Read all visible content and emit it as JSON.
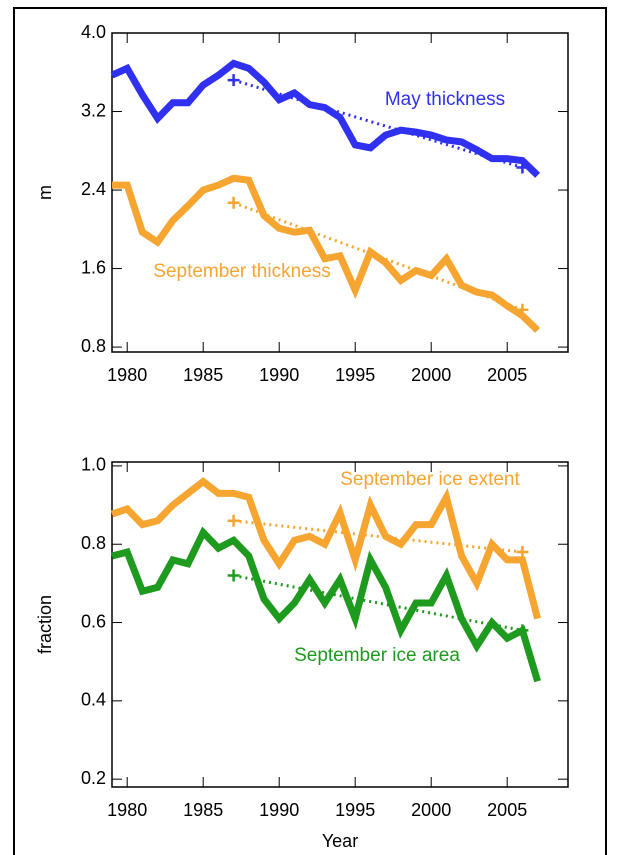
{
  "chart_data": [
    {
      "type": "line",
      "ylabel": "m",
      "x": [
        1979,
        1980,
        1981,
        1982,
        1983,
        1984,
        1985,
        1986,
        1987,
        1988,
        1989,
        1990,
        1991,
        1992,
        1993,
        1994,
        1995,
        1996,
        1997,
        1998,
        1999,
        2000,
        2001,
        2002,
        2003,
        2004,
        2005,
        2006,
        2007
      ],
      "xlim": [
        1979,
        2009
      ],
      "xticks": [
        1980,
        1985,
        1990,
        1995,
        2000,
        2005
      ],
      "ylim": [
        0.75,
        4.0
      ],
      "yticks": [
        0.8,
        1.6,
        2.4,
        3.2,
        {
          "value": 4,
          "label": "4.0"
        }
      ],
      "series": [
        {
          "name": "May thickness",
          "color": "#3030f0",
          "values": [
            3.57,
            3.64,
            3.37,
            3.13,
            3.29,
            3.29,
            3.47,
            3.57,
            3.69,
            3.64,
            3.5,
            3.32,
            3.39,
            3.27,
            3.24,
            3.14,
            2.86,
            2.83,
            2.96,
            3.01,
            2.99,
            2.96,
            2.91,
            2.89,
            2.81,
            2.72,
            2.72,
            2.7,
            2.55
          ],
          "trend": {
            "x": [
              1987,
              2006
            ],
            "values": [
              3.52,
              2.63
            ]
          }
        },
        {
          "name": "September thickness",
          "color": "#f7a531",
          "values": [
            2.45,
            2.45,
            1.97,
            1.87,
            2.09,
            2.24,
            2.4,
            2.45,
            2.52,
            2.5,
            2.14,
            2.01,
            1.97,
            1.99,
            1.7,
            1.73,
            1.38,
            1.77,
            1.66,
            1.48,
            1.58,
            1.53,
            1.7,
            1.43,
            1.36,
            1.33,
            1.22,
            1.12,
            0.97
          ],
          "trend": {
            "x": [
              1987,
              2006
            ],
            "values": [
              2.27,
              1.18
            ]
          }
        }
      ]
    },
    {
      "type": "line",
      "ylabel": "fraction",
      "xlabel": "Year",
      "x": [
        1979,
        1980,
        1981,
        1982,
        1983,
        1984,
        1985,
        1986,
        1987,
        1988,
        1989,
        1990,
        1991,
        1992,
        1993,
        1994,
        1995,
        1996,
        1997,
        1998,
        1999,
        2000,
        2001,
        2002,
        2003,
        2004,
        2005,
        2006,
        2007
      ],
      "xlim": [
        1979,
        2009
      ],
      "xticks": [
        1980,
        1985,
        1990,
        1995,
        2000,
        2005
      ],
      "ylim": [
        0.18,
        1.01
      ],
      "yticks": [
        0.2,
        0.4,
        0.6,
        0.8,
        {
          "value": 1,
          "label": "1.0"
        }
      ],
      "series": [
        {
          "name": "September ice extent",
          "color": "#f7a531",
          "values": [
            0.877,
            0.89,
            0.85,
            0.86,
            0.9,
            0.93,
            0.96,
            0.93,
            0.93,
            0.92,
            0.81,
            0.75,
            0.81,
            0.82,
            0.8,
            0.88,
            0.76,
            0.9,
            0.82,
            0.8,
            0.85,
            0.85,
            0.92,
            0.77,
            0.7,
            0.8,
            0.76,
            0.76,
            0.61
          ],
          "trend": {
            "x": [
              1987,
              2006
            ],
            "values": [
              0.86,
              0.78
            ]
          }
        },
        {
          "name": "September ice area",
          "color": "#1e9a1e",
          "values": [
            0.77,
            0.78,
            0.68,
            0.69,
            0.76,
            0.75,
            0.83,
            0.79,
            0.81,
            0.77,
            0.66,
            0.61,
            0.65,
            0.71,
            0.65,
            0.71,
            0.61,
            0.76,
            0.69,
            0.58,
            0.65,
            0.65,
            0.72,
            0.61,
            0.54,
            0.6,
            0.56,
            0.58,
            0.45
          ],
          "trend": {
            "x": [
              1987,
              2006
            ],
            "values": [
              0.72,
              0.58
            ]
          }
        }
      ]
    }
  ]
}
